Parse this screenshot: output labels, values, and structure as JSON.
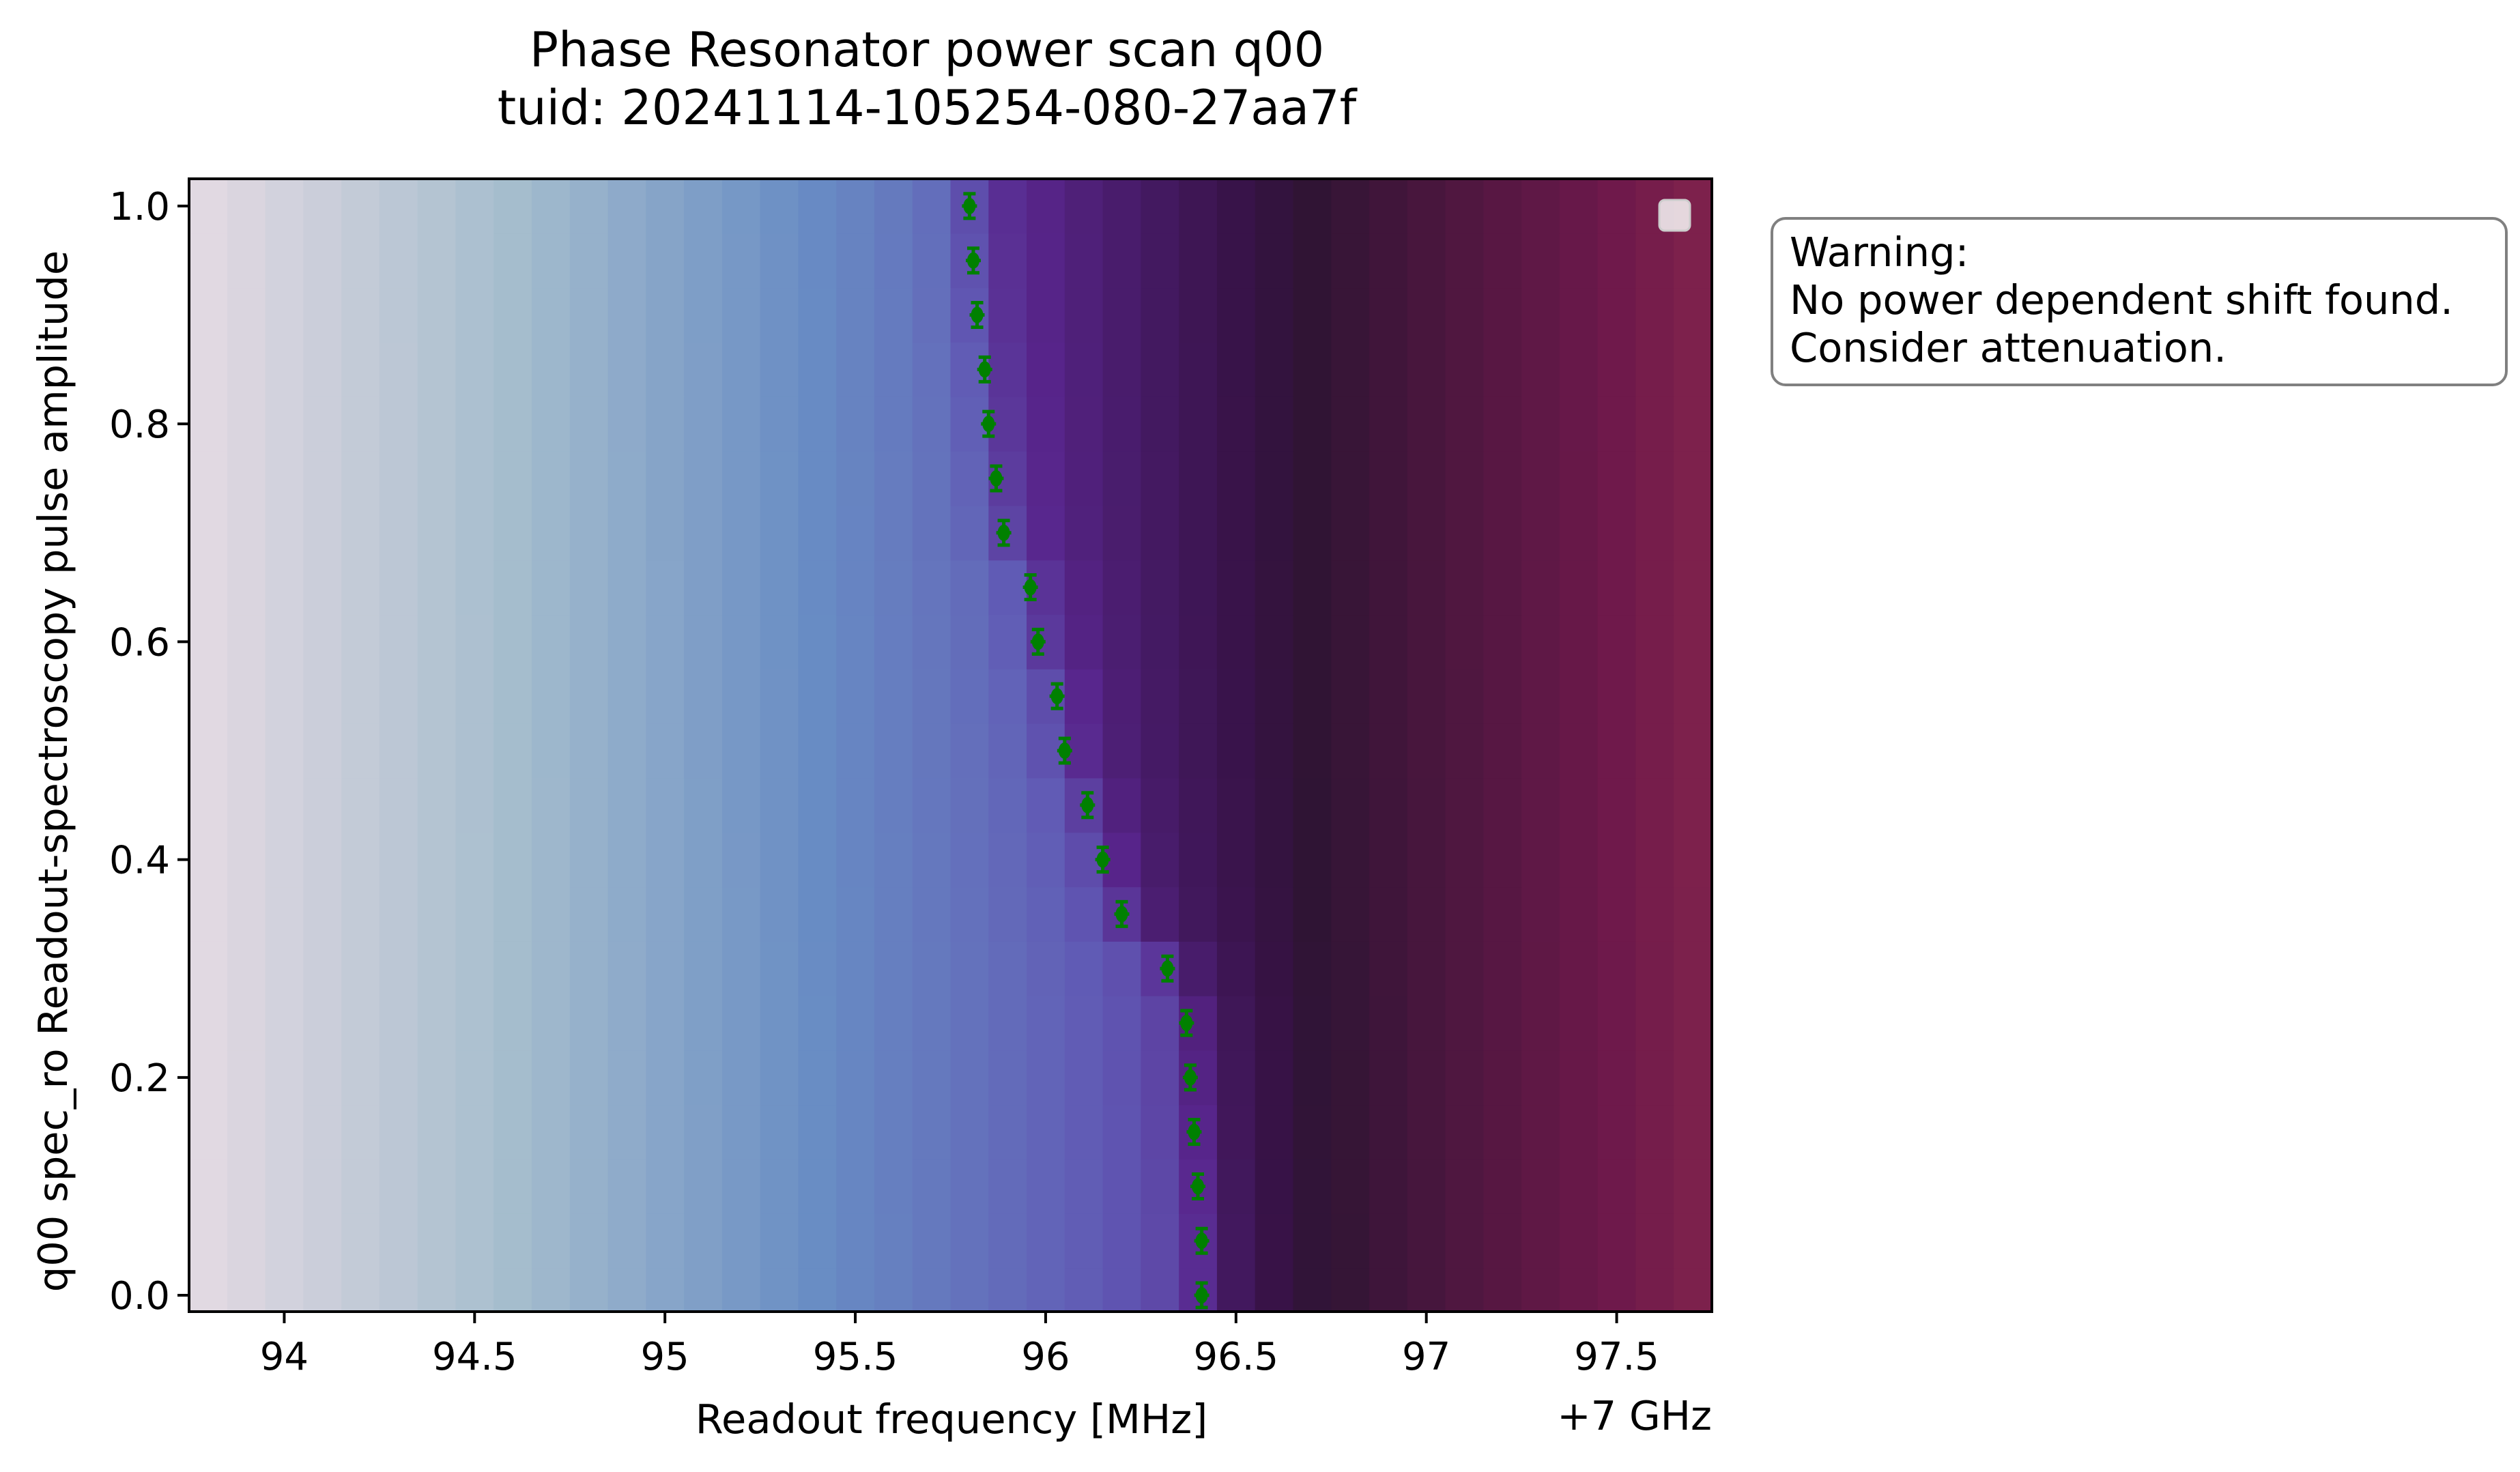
{
  "chart_data": {
    "type": "heatmap",
    "title": "Phase Resonator power scan q00",
    "subtitle": "tuid: 20241114-105254-080-27aa7f",
    "xlabel": "Readout frequency [MHz]",
    "ylabel": "q00 spec_ro Readout-spectroscopy pulse amplitude",
    "x_offset_label": "+7 GHz",
    "xlim": [
      93.75,
      97.75
    ],
    "ylim": [
      -0.015,
      1.025
    ],
    "x_ticks": [
      94,
      94.5,
      95,
      95.5,
      96,
      96.5,
      97,
      97.5
    ],
    "x_tick_labels": [
      "94",
      "94.5",
      "95",
      "95.5",
      "96",
      "96.5",
      "97",
      "97.5"
    ],
    "y_ticks": [
      0.0,
      0.2,
      0.4,
      0.6,
      0.8,
      1.0
    ],
    "y_tick_labels": [
      "0.0",
      "0.2",
      "0.4",
      "0.6",
      "0.8",
      "1.0"
    ],
    "grid": false,
    "colormap": "twilight",
    "x_centers": [
      93.8,
      93.9,
      94.0,
      94.1,
      94.2,
      94.3,
      94.4,
      94.5,
      94.6,
      94.7,
      94.8,
      94.9,
      95.0,
      95.1,
      95.2,
      95.3,
      95.4,
      95.5,
      95.6,
      95.7,
      95.8,
      95.9,
      96.0,
      96.1,
      96.2,
      96.3,
      96.4,
      96.5,
      96.6,
      96.7,
      96.8,
      96.9,
      97.0,
      97.1,
      97.2,
      97.3,
      97.4,
      97.5,
      97.6,
      97.7
    ],
    "y_centers": [
      0.0,
      0.05,
      0.1,
      0.15,
      0.2,
      0.25,
      0.3,
      0.35,
      0.4,
      0.45,
      0.5,
      0.55,
      0.6,
      0.65,
      0.7,
      0.75,
      0.8,
      0.85,
      0.9,
      0.95,
      1.0
    ],
    "resonance_points": {
      "color": "#008000",
      "amplitude": [
        0.0,
        0.05,
        0.1,
        0.15,
        0.2,
        0.25,
        0.3,
        0.35,
        0.4,
        0.45,
        0.5,
        0.55,
        0.6,
        0.65,
        0.7,
        0.75,
        0.8,
        0.85,
        0.9,
        0.95,
        1.0
      ],
      "frequency": [
        96.41,
        96.41,
        96.4,
        96.39,
        96.38,
        96.37,
        96.32,
        96.2,
        96.15,
        96.11,
        96.05,
        96.03,
        95.98,
        95.96,
        95.89,
        95.87,
        95.85,
        95.84,
        95.82,
        95.81,
        95.8
      ]
    },
    "legend": {
      "placement": "top-right",
      "entries": []
    },
    "annotation": {
      "lines": [
        "Warning:",
        "No power dependent shift found.",
        "Consider attenuation."
      ],
      "placement": "outside-right"
    }
  }
}
